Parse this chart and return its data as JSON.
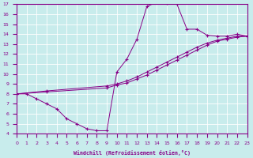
{
  "xlabel": "Windchill (Refroidissement éolien,°C)",
  "background_color": "#c8ecec",
  "grid_color": "#ffffff",
  "line_color": "#880088",
  "xlim": [
    0,
    23
  ],
  "ylim": [
    4,
    17
  ],
  "curve1_x": [
    0,
    1,
    2,
    3,
    4,
    5,
    6,
    7,
    8,
    9,
    10,
    11,
    12,
    13,
    14,
    15,
    16,
    17,
    18,
    19,
    20,
    21,
    22,
    23
  ],
  "curve1_y": [
    8.0,
    8.0,
    7.5,
    7.0,
    6.5,
    5.5,
    5.0,
    4.5,
    4.3,
    4.3,
    10.2,
    11.5,
    13.5,
    16.8,
    17.2,
    17.1,
    17.0,
    14.5,
    14.5,
    13.9,
    13.8,
    13.8,
    14.0,
    13.8
  ],
  "curve2_x": [
    0,
    3,
    9,
    10,
    11,
    12,
    13,
    14,
    15,
    16,
    17,
    18,
    19,
    20,
    21,
    22,
    23
  ],
  "curve2_y": [
    8.0,
    8.3,
    8.8,
    9.0,
    9.3,
    9.7,
    10.2,
    10.7,
    11.2,
    11.7,
    12.2,
    12.7,
    13.1,
    13.4,
    13.6,
    13.8,
    13.8
  ],
  "curve3_x": [
    0,
    3,
    9,
    10,
    11,
    12,
    13,
    14,
    15,
    16,
    17,
    18,
    19,
    20,
    21,
    22,
    23
  ],
  "curve3_y": [
    8.0,
    8.2,
    8.6,
    8.9,
    9.1,
    9.5,
    9.9,
    10.4,
    10.9,
    11.4,
    11.9,
    12.4,
    12.9,
    13.3,
    13.5,
    13.7,
    13.8
  ]
}
